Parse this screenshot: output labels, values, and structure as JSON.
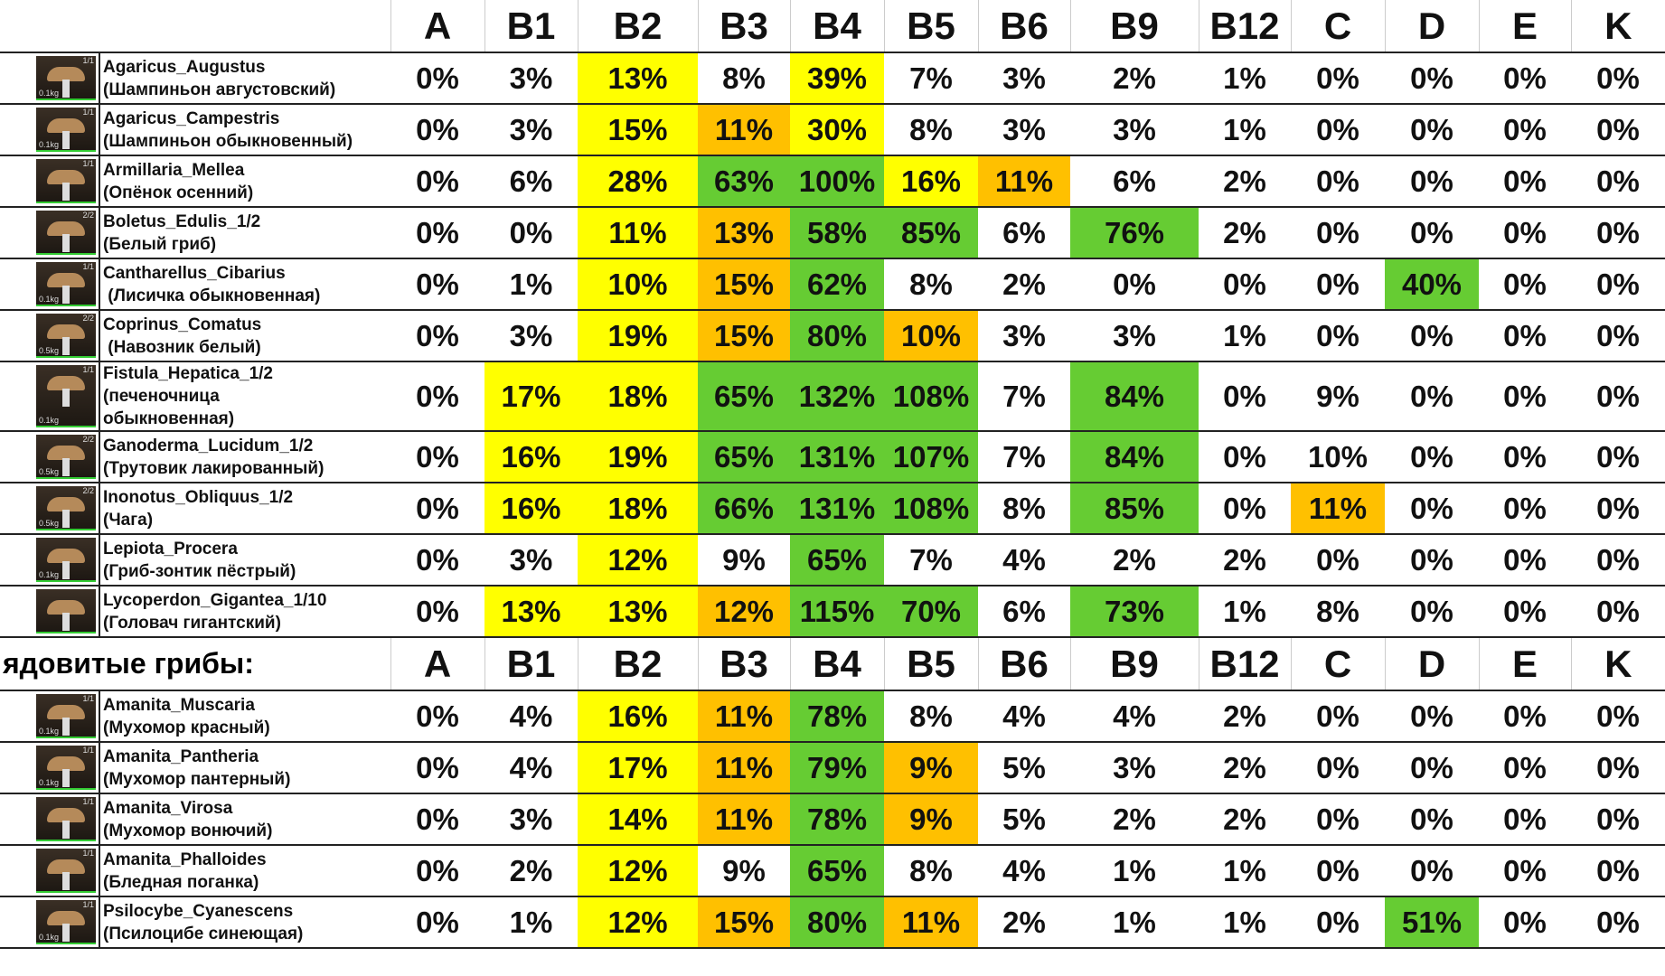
{
  "sections": [
    {
      "columns": [
        "A",
        "B1",
        "B2",
        "B3",
        "B4",
        "B5",
        "B6",
        "B9",
        "B12",
        "C",
        "D",
        "E",
        "K"
      ],
      "rows": [
        {
          "lines": [
            "Agaricus_Augustus",
            "(Шампиньон августовский)"
          ],
          "badge": "1/1",
          "weight": "0.1kg",
          "values": [
            "0%",
            "3%",
            "13%",
            "8%",
            "39%",
            "7%",
            "3%",
            "2%",
            "1%",
            "0%",
            "0%",
            "0%",
            "0%"
          ],
          "fills": [
            null,
            null,
            "#ffff00",
            null,
            "#ffff00",
            null,
            null,
            null,
            null,
            null,
            null,
            null,
            null
          ]
        },
        {
          "lines": [
            "Agaricus_Campestris",
            "(Шампиньон обыкновенный)"
          ],
          "badge": "1/1",
          "weight": "0.1kg",
          "values": [
            "0%",
            "3%",
            "15%",
            "11%",
            "30%",
            "8%",
            "3%",
            "3%",
            "1%",
            "0%",
            "0%",
            "0%",
            "0%"
          ],
          "fills": [
            null,
            null,
            "#ffff00",
            "#ffc000",
            "#ffff00",
            null,
            null,
            null,
            null,
            null,
            null,
            null,
            null
          ]
        },
        {
          "lines": [
            "Armillaria_Mellea",
            "(Опёнок осенний)"
          ],
          "badge": "1/1",
          "values": [
            "0%",
            "6%",
            "28%",
            "63%",
            "100%",
            "16%",
            "11%",
            "6%",
            "2%",
            "0%",
            "0%",
            "0%",
            "0%"
          ],
          "fills": [
            null,
            null,
            "#ffff00",
            "#66cc33",
            "#66cc33",
            "#ffff00",
            "#ffc000",
            null,
            null,
            null,
            null,
            null,
            null
          ]
        },
        {
          "lines": [
            "Boletus_Edulis_1/2",
            "(Белый гриб)"
          ],
          "badge": "2/2",
          "values": [
            "0%",
            "0%",
            "11%",
            "13%",
            "58%",
            "85%",
            "6%",
            "76%",
            "2%",
            "0%",
            "0%",
            "0%",
            "0%"
          ],
          "fills": [
            null,
            null,
            "#ffff00",
            "#ffc000",
            "#66cc33",
            "#66cc33",
            null,
            "#66cc33",
            null,
            null,
            null,
            null,
            null
          ]
        },
        {
          "lines": [
            "Cantharellus_Cibarius",
            " (Лисичка обыкновенная)"
          ],
          "badge": "1/1",
          "weight": "0.1kg",
          "values": [
            "0%",
            "1%",
            "10%",
            "15%",
            "62%",
            "8%",
            "2%",
            "0%",
            "0%",
            "0%",
            "40%",
            "0%",
            "0%"
          ],
          "fills": [
            null,
            null,
            "#ffff00",
            "#ffc000",
            "#66cc33",
            null,
            null,
            null,
            null,
            null,
            "#66cc33",
            null,
            null
          ]
        },
        {
          "lines": [
            "Coprinus_Comatus",
            " (Навозник белый)"
          ],
          "badge": "2/2",
          "weight": "0.5kg",
          "values": [
            "0%",
            "3%",
            "19%",
            "15%",
            "80%",
            "10%",
            "3%",
            "3%",
            "1%",
            "0%",
            "0%",
            "0%",
            "0%"
          ],
          "fills": [
            null,
            null,
            "#ffff00",
            "#ffc000",
            "#66cc33",
            "#ffc000",
            null,
            null,
            null,
            null,
            null,
            null,
            null
          ]
        },
        {
          "lines": [
            "Fistula_Hepatica_1/2",
            "(печеночница",
            "обыкновенная)"
          ],
          "badge": "1/1",
          "weight": "0.1kg",
          "values": [
            "0%",
            "17%",
            "18%",
            "65%",
            "132%",
            "108%",
            "7%",
            "84%",
            "0%",
            "9%",
            "0%",
            "0%",
            "0%"
          ],
          "fills": [
            null,
            "#ffff00",
            "#ffff00",
            "#66cc33",
            "#66cc33",
            "#66cc33",
            null,
            "#66cc33",
            null,
            null,
            null,
            null,
            null
          ]
        },
        {
          "lines": [
            "Ganoderma_Lucidum_1/2",
            "(Трутовик лакированный)"
          ],
          "badge": "2/2",
          "weight": "0.5kg",
          "values": [
            "0%",
            "16%",
            "19%",
            "65%",
            "131%",
            "107%",
            "7%",
            "84%",
            "0%",
            "10%",
            "0%",
            "0%",
            "0%"
          ],
          "fills": [
            null,
            "#ffff00",
            "#ffff00",
            "#66cc33",
            "#66cc33",
            "#66cc33",
            null,
            "#66cc33",
            null,
            null,
            null,
            null,
            null
          ]
        },
        {
          "lines": [
            "Inonotus_Obliquus_1/2",
            "(Чага)"
          ],
          "badge": "2/2",
          "weight": "0.5kg",
          "values": [
            "0%",
            "16%",
            "18%",
            "66%",
            "131%",
            "108%",
            "8%",
            "85%",
            "0%",
            "11%",
            "0%",
            "0%",
            "0%"
          ],
          "fills": [
            null,
            "#ffff00",
            "#ffff00",
            "#66cc33",
            "#66cc33",
            "#66cc33",
            null,
            "#66cc33",
            null,
            "#ffc000",
            null,
            null,
            null
          ]
        },
        {
          "lines": [
            "Lepiota_Procera",
            "(Гриб-зонтик пёстрый)"
          ],
          "weight": "0.1kg",
          "values": [
            "0%",
            "3%",
            "12%",
            "9%",
            "65%",
            "7%",
            "4%",
            "2%",
            "2%",
            "0%",
            "0%",
            "0%",
            "0%"
          ],
          "fills": [
            null,
            null,
            "#ffff00",
            null,
            "#66cc33",
            null,
            null,
            null,
            null,
            null,
            null,
            null,
            null
          ]
        },
        {
          "lines": [
            "Lycoperdon_Gigantea_1/10",
            "(Головач гигантский)"
          ],
          "values": [
            "0%",
            "13%",
            "13%",
            "12%",
            "115%",
            "70%",
            "6%",
            "73%",
            "1%",
            "8%",
            "0%",
            "0%",
            "0%"
          ],
          "fills": [
            null,
            "#ffff00",
            "#ffff00",
            "#ffc000",
            "#66cc33",
            "#66cc33",
            null,
            "#66cc33",
            null,
            null,
            null,
            null,
            null
          ]
        }
      ]
    },
    {
      "title": "ядовитые грибы:",
      "columns": [
        "A",
        "B1",
        "B2",
        "B3",
        "B4",
        "B5",
        "B6",
        "B9",
        "B12",
        "C",
        "D",
        "E",
        "K"
      ],
      "rows": [
        {
          "lines": [
            "Amanita_Muscaria",
            "(Мухомор красный)"
          ],
          "badge": "1/1",
          "weight": "0.1kg",
          "values": [
            "0%",
            "4%",
            "16%",
            "11%",
            "78%",
            "8%",
            "4%",
            "4%",
            "2%",
            "0%",
            "0%",
            "0%",
            "0%"
          ],
          "fills": [
            null,
            null,
            "#ffff00",
            "#ffc000",
            "#66cc33",
            null,
            null,
            null,
            null,
            null,
            null,
            null,
            null
          ]
        },
        {
          "lines": [
            "Amanita_Pantheria",
            "(Мухомор пантерный)"
          ],
          "badge": "1/1",
          "weight": "0.1kg",
          "values": [
            "0%",
            "4%",
            "17%",
            "11%",
            "79%",
            "9%",
            "5%",
            "3%",
            "2%",
            "0%",
            "0%",
            "0%",
            "0%"
          ],
          "fills": [
            null,
            null,
            "#ffff00",
            "#ffc000",
            "#66cc33",
            "#ffc000",
            null,
            null,
            null,
            null,
            null,
            null,
            null
          ]
        },
        {
          "lines": [
            "Amanita_Virosa",
            "(Мухомор вонючий)"
          ],
          "badge": "1/1",
          "values": [
            "0%",
            "3%",
            "14%",
            "11%",
            "78%",
            "9%",
            "5%",
            "2%",
            "2%",
            "0%",
            "0%",
            "0%",
            "0%"
          ],
          "fills": [
            null,
            null,
            "#ffff00",
            "#ffc000",
            "#66cc33",
            "#ffc000",
            null,
            null,
            null,
            null,
            null,
            null,
            null
          ]
        },
        {
          "lines": [
            "Amanita_Phalloides",
            "(Бледная поганка)"
          ],
          "badge": "1/1",
          "values": [
            "0%",
            "2%",
            "12%",
            "9%",
            "65%",
            "8%",
            "4%",
            "1%",
            "1%",
            "0%",
            "0%",
            "0%",
            "0%"
          ],
          "fills": [
            null,
            null,
            "#ffff00",
            null,
            "#66cc33",
            null,
            null,
            null,
            null,
            null,
            null,
            null,
            null
          ]
        },
        {
          "lines": [
            "Psilocybe_Cyanescens",
            "(Псилоцибе синеющая)"
          ],
          "badge": "1/1",
          "weight": "0.1kg",
          "values": [
            "0%",
            "1%",
            "12%",
            "15%",
            "80%",
            "11%",
            "2%",
            "1%",
            "1%",
            "0%",
            "51%",
            "0%",
            "0%"
          ],
          "fills": [
            null,
            null,
            "#ffff00",
            "#ffc000",
            "#66cc33",
            "#ffc000",
            null,
            null,
            null,
            null,
            "#66cc33",
            null,
            null
          ]
        }
      ]
    }
  ]
}
